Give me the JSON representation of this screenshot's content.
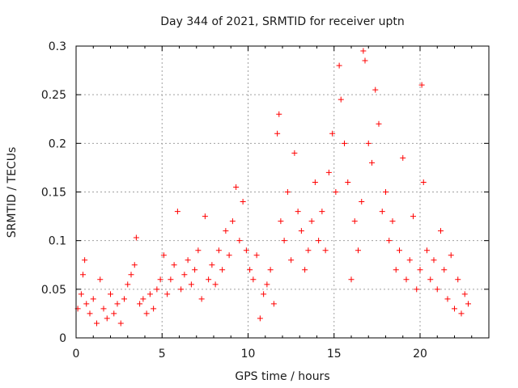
{
  "chart_data": {
    "type": "scatter",
    "title": "Day 344 of 2021, SRMTID for receiver uptn",
    "xlabel": "GPS time / hours",
    "ylabel": "SRMTID / TECUs",
    "xlim": [
      0,
      24
    ],
    "ylim": [
      0,
      0.3
    ],
    "x_ticks": [
      0,
      5,
      10,
      15,
      20
    ],
    "y_ticks": [
      0,
      0.05,
      0.1,
      0.15,
      0.2,
      0.25,
      0.3
    ],
    "x_tick_labels": [
      "0",
      "5",
      "10",
      "15",
      "20"
    ],
    "y_tick_labels": [
      "0",
      "0.05",
      "0.1",
      "0.15",
      "0.2",
      "0.25",
      "0.3"
    ],
    "grid": true,
    "marker": "plus",
    "color": "#ff0000",
    "series": [
      {
        "name": "SRMTID",
        "points": [
          [
            0.1,
            0.03
          ],
          [
            0.3,
            0.045
          ],
          [
            0.4,
            0.065
          ],
          [
            0.5,
            0.08
          ],
          [
            0.6,
            0.035
          ],
          [
            0.8,
            0.025
          ],
          [
            1.0,
            0.04
          ],
          [
            1.2,
            0.015
          ],
          [
            1.4,
            0.06
          ],
          [
            1.6,
            0.03
          ],
          [
            1.8,
            0.02
          ],
          [
            2.0,
            0.045
          ],
          [
            2.2,
            0.025
          ],
          [
            2.4,
            0.035
          ],
          [
            2.6,
            0.015
          ],
          [
            2.8,
            0.04
          ],
          [
            3.0,
            0.055
          ],
          [
            3.2,
            0.065
          ],
          [
            3.4,
            0.075
          ],
          [
            3.5,
            0.103
          ],
          [
            3.7,
            0.035
          ],
          [
            3.9,
            0.04
          ],
          [
            4.1,
            0.025
          ],
          [
            4.3,
            0.045
          ],
          [
            4.5,
            0.03
          ],
          [
            4.7,
            0.05
          ],
          [
            4.9,
            0.06
          ],
          [
            5.1,
            0.085
          ],
          [
            5.3,
            0.045
          ],
          [
            5.5,
            0.06
          ],
          [
            5.7,
            0.075
          ],
          [
            5.9,
            0.13
          ],
          [
            6.1,
            0.05
          ],
          [
            6.3,
            0.065
          ],
          [
            6.5,
            0.08
          ],
          [
            6.7,
            0.055
          ],
          [
            6.9,
            0.07
          ],
          [
            7.1,
            0.09
          ],
          [
            7.3,
            0.04
          ],
          [
            7.5,
            0.125
          ],
          [
            7.7,
            0.06
          ],
          [
            7.9,
            0.075
          ],
          [
            8.1,
            0.055
          ],
          [
            8.3,
            0.09
          ],
          [
            8.5,
            0.07
          ],
          [
            8.7,
            0.11
          ],
          [
            8.9,
            0.085
          ],
          [
            9.1,
            0.12
          ],
          [
            9.3,
            0.155
          ],
          [
            9.5,
            0.1
          ],
          [
            9.7,
            0.14
          ],
          [
            9.9,
            0.09
          ],
          [
            10.1,
            0.07
          ],
          [
            10.3,
            0.06
          ],
          [
            10.5,
            0.085
          ],
          [
            10.7,
            0.02
          ],
          [
            10.9,
            0.045
          ],
          [
            11.1,
            0.055
          ],
          [
            11.3,
            0.07
          ],
          [
            11.5,
            0.035
          ],
          [
            11.7,
            0.21
          ],
          [
            11.8,
            0.23
          ],
          [
            11.9,
            0.12
          ],
          [
            12.1,
            0.1
          ],
          [
            12.3,
            0.15
          ],
          [
            12.5,
            0.08
          ],
          [
            12.7,
            0.19
          ],
          [
            12.9,
            0.13
          ],
          [
            13.1,
            0.11
          ],
          [
            13.3,
            0.07
          ],
          [
            13.5,
            0.09
          ],
          [
            13.7,
            0.12
          ],
          [
            13.9,
            0.16
          ],
          [
            14.1,
            0.1
          ],
          [
            14.3,
            0.13
          ],
          [
            14.5,
            0.09
          ],
          [
            14.7,
            0.17
          ],
          [
            14.9,
            0.21
          ],
          [
            15.1,
            0.15
          ],
          [
            15.3,
            0.28
          ],
          [
            15.4,
            0.245
          ],
          [
            15.6,
            0.2
          ],
          [
            15.8,
            0.16
          ],
          [
            16.0,
            0.06
          ],
          [
            16.2,
            0.12
          ],
          [
            16.4,
            0.09
          ],
          [
            16.6,
            0.14
          ],
          [
            16.7,
            0.295
          ],
          [
            16.8,
            0.285
          ],
          [
            17.0,
            0.2
          ],
          [
            17.2,
            0.18
          ],
          [
            17.4,
            0.255
          ],
          [
            17.6,
            0.22
          ],
          [
            17.8,
            0.13
          ],
          [
            18.0,
            0.15
          ],
          [
            18.2,
            0.1
          ],
          [
            18.4,
            0.12
          ],
          [
            18.6,
            0.07
          ],
          [
            18.8,
            0.09
          ],
          [
            19.0,
            0.185
          ],
          [
            19.2,
            0.06
          ],
          [
            19.4,
            0.08
          ],
          [
            19.6,
            0.125
          ],
          [
            19.8,
            0.05
          ],
          [
            20.0,
            0.07
          ],
          [
            20.1,
            0.26
          ],
          [
            20.2,
            0.16
          ],
          [
            20.4,
            0.09
          ],
          [
            20.6,
            0.06
          ],
          [
            20.8,
            0.08
          ],
          [
            21.0,
            0.05
          ],
          [
            21.2,
            0.11
          ],
          [
            21.4,
            0.07
          ],
          [
            21.6,
            0.04
          ],
          [
            21.8,
            0.085
          ],
          [
            22.0,
            0.03
          ],
          [
            22.2,
            0.06
          ],
          [
            22.4,
            0.025
          ],
          [
            22.6,
            0.045
          ],
          [
            22.8,
            0.035
          ]
        ]
      }
    ]
  }
}
